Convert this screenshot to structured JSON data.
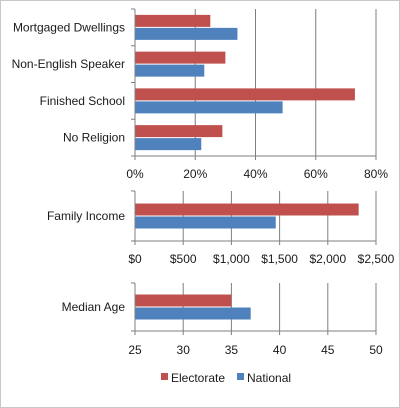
{
  "chart_data": [
    {
      "type": "bar",
      "orientation": "horizontal",
      "categories": [
        "Mortgaged Dwellings",
        "Non-English Speaker",
        "Finished School",
        "No Religion"
      ],
      "series": [
        {
          "name": "Electorate",
          "values": [
            25,
            30,
            73,
            29
          ]
        },
        {
          "name": "National",
          "values": [
            34,
            23,
            49,
            22
          ]
        }
      ],
      "xlim": [
        0,
        80
      ],
      "xticks": [
        0,
        20,
        40,
        60,
        80
      ],
      "xtick_labels": [
        "0%",
        "20%",
        "40%",
        "60%",
        "80%"
      ],
      "grid": true
    },
    {
      "type": "bar",
      "orientation": "horizontal",
      "categories": [
        "Family Income"
      ],
      "series": [
        {
          "name": "Electorate",
          "values": [
            2320
          ]
        },
        {
          "name": "National",
          "values": [
            1460
          ]
        }
      ],
      "xlim": [
        0,
        2500
      ],
      "xticks": [
        0,
        500,
        1000,
        1500,
        2000,
        2500
      ],
      "xtick_labels": [
        "$0",
        "$500",
        "$1,000",
        "$1,500",
        "$2,000",
        "$2,500"
      ],
      "grid": true
    },
    {
      "type": "bar",
      "orientation": "horizontal",
      "categories": [
        "Median Age"
      ],
      "series": [
        {
          "name": "Electorate",
          "values": [
            35
          ]
        },
        {
          "name": "National",
          "values": [
            37
          ]
        }
      ],
      "xlim": [
        25,
        50
      ],
      "xticks": [
        25,
        30,
        35,
        40,
        45,
        50
      ],
      "xtick_labels": [
        "25",
        "30",
        "35",
        "40",
        "45",
        "50"
      ],
      "grid": true
    }
  ],
  "legend": {
    "placement": "bottom",
    "items": [
      {
        "label": "Electorate",
        "color": "#c0504d"
      },
      {
        "label": "National",
        "color": "#4f81bd"
      }
    ]
  },
  "colors": {
    "electorate": "#c0504d",
    "national": "#4f81bd",
    "grid": "#7f7f7f",
    "axis": "#7f7f7f"
  }
}
